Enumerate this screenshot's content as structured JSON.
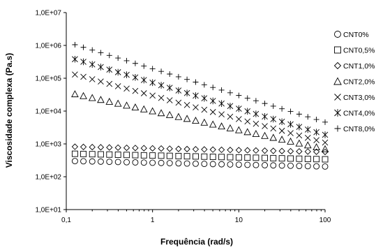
{
  "chart_data": {
    "type": "scatter",
    "xlabel": "Frequência (rad/s)",
    "ylabel": "Viscosidade complexa (Pa.s)",
    "x_scale": "log",
    "y_scale": "log",
    "xlim": [
      0.1,
      100
    ],
    "ylim": [
      10,
      10000000
    ],
    "x_ticks": [
      {
        "value": 0.1,
        "label": "0,1"
      },
      {
        "value": 1,
        "label": "1"
      },
      {
        "value": 10,
        "label": "10"
      },
      {
        "value": 100,
        "label": "100"
      }
    ],
    "y_ticks": [
      {
        "value": 10,
        "label": "1,0E+01"
      },
      {
        "value": 100,
        "label": "1,0E+02"
      },
      {
        "value": 1000,
        "label": "1,0E+03"
      },
      {
        "value": 10000,
        "label": "1,0E+04"
      },
      {
        "value": 100000,
        "label": "1,0E+05"
      },
      {
        "value": 1000000,
        "label": "1,0E+06"
      },
      {
        "value": 10000000,
        "label": "1,0E+07"
      }
    ],
    "grid": false,
    "legend_position": "right",
    "x": [
      0.126,
      0.158,
      0.2,
      0.251,
      0.316,
      0.398,
      0.501,
      0.631,
      0.794,
      1.0,
      1.26,
      1.58,
      2.0,
      2.51,
      3.16,
      3.98,
      5.01,
      6.31,
      7.94,
      10.0,
      12.6,
      15.8,
      20.0,
      25.1,
      31.6,
      39.8,
      50.1,
      63.1,
      79.4,
      100.0
    ],
    "series": [
      {
        "name": "CNT0%",
        "marker": "circle",
        "start": 300,
        "end": 205
      },
      {
        "name": "CNT0,5%",
        "marker": "square",
        "start": 500,
        "end": 340
      },
      {
        "name": "CNT1,0%",
        "marker": "diamond",
        "start": 820,
        "end": 570
      },
      {
        "name": "CNT2,0%",
        "marker": "triangle",
        "start": 33000,
        "end": 700
      },
      {
        "name": "CNT3,0%",
        "marker": "x",
        "start": 130000,
        "end": 1100
      },
      {
        "name": "CNT4,0%",
        "marker": "asterisk",
        "start": 380000,
        "end": 1900
      },
      {
        "name": "CNT8,0%",
        "marker": "plus",
        "start": 1050000,
        "end": 4600
      }
    ]
  }
}
